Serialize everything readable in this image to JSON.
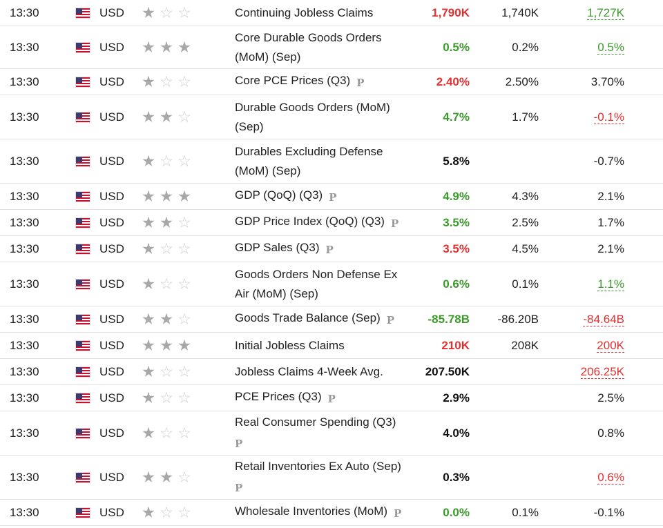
{
  "icons": {
    "flag": "us-flag-icon",
    "star": "star-icon",
    "preliminary": "preliminary-p-icon"
  },
  "colors": {
    "better": "#3a9a2a",
    "worse": "#e23030",
    "neutral": "#111111"
  },
  "rows": [
    {
      "time": "13:30",
      "currency": "USD",
      "importance": 1,
      "event_line1": "Continuing Jobless Claims",
      "event_line2": "",
      "prelim": "",
      "actual": "1,790K",
      "actual_tone": "red",
      "forecast": "1,740K",
      "previous": "1,727K",
      "previous_rev": "up"
    },
    {
      "time": "13:30",
      "currency": "USD",
      "importance": 3,
      "event_line1": "Core Durable Goods Orders",
      "event_line2": "(MoM) (Sep)",
      "prelim": "",
      "actual": "0.5%",
      "actual_tone": "green",
      "forecast": "0.2%",
      "previous": "0.5%",
      "previous_rev": "up"
    },
    {
      "time": "13:30",
      "currency": "USD",
      "importance": 1,
      "event_line1": "Core PCE Prices (Q3)",
      "event_line2": "",
      "prelim": "P",
      "actual": "2.40%",
      "actual_tone": "red",
      "forecast": "2.50%",
      "previous": "3.70%",
      "previous_rev": ""
    },
    {
      "time": "13:30",
      "currency": "USD",
      "importance": 2,
      "event_line1": "Durable Goods Orders (MoM)",
      "event_line2": "(Sep)",
      "prelim": "",
      "actual": "4.7%",
      "actual_tone": "green",
      "forecast": "1.7%",
      "previous": "-0.1%",
      "previous_rev": "down"
    },
    {
      "time": "13:30",
      "currency": "USD",
      "importance": 1,
      "event_line1": "Durables Excluding Defense",
      "event_line2": "(MoM) (Sep)",
      "prelim": "",
      "actual": "5.8%",
      "actual_tone": "black",
      "forecast": "",
      "previous": "-0.7%",
      "previous_rev": ""
    },
    {
      "time": "13:30",
      "currency": "USD",
      "importance": 3,
      "event_line1": "GDP (QoQ) (Q3)",
      "event_line2": "",
      "prelim": "P",
      "actual": "4.9%",
      "actual_tone": "green",
      "forecast": "4.3%",
      "previous": "2.1%",
      "previous_rev": ""
    },
    {
      "time": "13:30",
      "currency": "USD",
      "importance": 2,
      "event_line1": "GDP Price Index (QoQ) (Q3)",
      "event_line2": "",
      "prelim": "P",
      "actual": "3.5%",
      "actual_tone": "green",
      "forecast": "2.5%",
      "previous": "1.7%",
      "previous_rev": ""
    },
    {
      "time": "13:30",
      "currency": "USD",
      "importance": 1,
      "event_line1": "GDP Sales (Q3)",
      "event_line2": "",
      "prelim": "P",
      "actual": "3.5%",
      "actual_tone": "red",
      "forecast": "4.5%",
      "previous": "2.1%",
      "previous_rev": ""
    },
    {
      "time": "13:30",
      "currency": "USD",
      "importance": 1,
      "event_line1": "Goods Orders Non Defense Ex",
      "event_line2": "Air (MoM) (Sep)",
      "prelim": "",
      "actual": "0.6%",
      "actual_tone": "green",
      "forecast": "0.1%",
      "previous": "1.1%",
      "previous_rev": "up"
    },
    {
      "time": "13:30",
      "currency": "USD",
      "importance": 2,
      "event_line1": "Goods Trade Balance (Sep)",
      "event_line2": "",
      "prelim": "P",
      "actual": "-85.78B",
      "actual_tone": "green",
      "forecast": "-86.20B",
      "previous": "-84.64B",
      "previous_rev": "down"
    },
    {
      "time": "13:30",
      "currency": "USD",
      "importance": 3,
      "event_line1": "Initial Jobless Claims",
      "event_line2": "",
      "prelim": "",
      "actual": "210K",
      "actual_tone": "red",
      "forecast": "208K",
      "previous": "200K",
      "previous_rev": "down"
    },
    {
      "time": "13:30",
      "currency": "USD",
      "importance": 1,
      "event_line1": "Jobless Claims 4-Week Avg.",
      "event_line2": "",
      "prelim": "",
      "actual": "207.50K",
      "actual_tone": "black",
      "forecast": "",
      "previous": "206.25K",
      "previous_rev": "down"
    },
    {
      "time": "13:30",
      "currency": "USD",
      "importance": 1,
      "event_line1": "PCE Prices (Q3)",
      "event_line2": "",
      "prelim": "P",
      "actual": "2.9%",
      "actual_tone": "black",
      "forecast": "",
      "previous": "2.5%",
      "previous_rev": ""
    },
    {
      "time": "13:30",
      "currency": "USD",
      "importance": 1,
      "event_line1": "Real Consumer Spending (Q3)",
      "event_line2": "",
      "prelim": "P",
      "prelim_newline": true,
      "actual": "4.0%",
      "actual_tone": "black",
      "forecast": "",
      "previous": "0.8%",
      "previous_rev": ""
    },
    {
      "time": "13:30",
      "currency": "USD",
      "importance": 2,
      "event_line1": "Retail Inventories Ex Auto (Sep)",
      "event_line2": "",
      "prelim": "P",
      "prelim_newline": true,
      "actual": "0.3%",
      "actual_tone": "black",
      "forecast": "",
      "previous": "0.6%",
      "previous_rev": "down"
    },
    {
      "time": "13:30",
      "currency": "USD",
      "importance": 1,
      "event_line1": "Wholesale Inventories (MoM)",
      "event_line2": "",
      "prelim": "P",
      "actual": "0.0%",
      "actual_tone": "green",
      "forecast": "0.1%",
      "previous": "-0.1%",
      "previous_rev": ""
    }
  ]
}
